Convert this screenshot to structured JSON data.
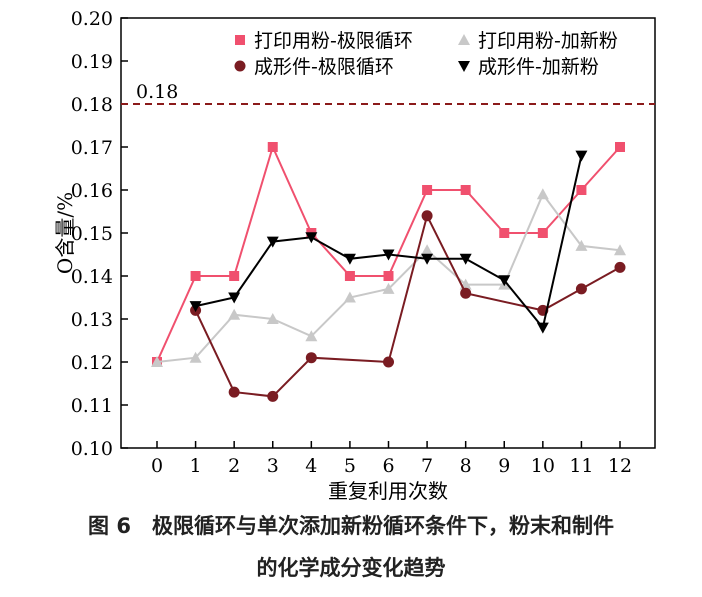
{
  "chart_data": {
    "type": "line",
    "xlabel": "重复利用次数",
    "ylabel": "O含量/%",
    "xlim": [
      -1,
      13
    ],
    "ylim": [
      0.1,
      0.2
    ],
    "xticks": [
      0,
      1,
      2,
      3,
      4,
      5,
      6,
      7,
      8,
      9,
      10,
      11,
      12
    ],
    "yticks": [
      "0.10",
      "0.11",
      "0.12",
      "0.13",
      "0.14",
      "0.15",
      "0.16",
      "0.17",
      "0.18",
      "0.19",
      "0.20"
    ],
    "reference_line": {
      "y": 0.18,
      "label": "0.18",
      "color": "#8b1a1a",
      "style": "dashed"
    },
    "legend": "top",
    "grid": false,
    "series": [
      {
        "name": "打印用粉-极限循环",
        "color": "#f0506e",
        "marker": "square",
        "x": [
          0,
          1,
          2,
          3,
          4,
          5,
          6,
          7,
          8,
          9,
          10,
          11,
          12
        ],
        "values": [
          0.12,
          0.14,
          0.14,
          0.17,
          0.15,
          0.14,
          0.14,
          0.16,
          0.16,
          0.15,
          0.15,
          0.16,
          0.17
        ]
      },
      {
        "name": "打印用粉-加新粉",
        "color": "#c8c8c8",
        "marker": "triangle-up",
        "x": [
          0,
          1,
          2,
          3,
          4,
          5,
          6,
          7,
          8,
          9,
          10,
          11,
          12
        ],
        "values": [
          0.12,
          0.121,
          0.131,
          0.13,
          0.126,
          0.135,
          0.137,
          0.146,
          0.138,
          0.138,
          0.159,
          0.147,
          0.146
        ]
      },
      {
        "name": "成形件-极限循环",
        "color": "#7a1c22",
        "marker": "circle",
        "x": [
          1,
          2,
          3,
          4,
          6,
          7,
          8,
          10,
          11,
          12
        ],
        "values": [
          0.132,
          0.113,
          0.112,
          0.121,
          0.12,
          0.154,
          0.136,
          0.132,
          0.137,
          0.142
        ]
      },
      {
        "name": "成形件-加新粉",
        "color": "#000000",
        "marker": "triangle-down",
        "x": [
          1,
          2,
          3,
          4,
          5,
          6,
          7,
          8,
          9,
          10,
          11
        ],
        "values": [
          0.133,
          0.135,
          0.148,
          0.149,
          0.144,
          0.145,
          0.144,
          0.144,
          0.139,
          0.128,
          0.168
        ]
      }
    ]
  },
  "caption": {
    "line1": "图 6　极限循环与单次添加新粉循环条件下，粉末和制件",
    "line2": "的化学成分变化趋势"
  }
}
